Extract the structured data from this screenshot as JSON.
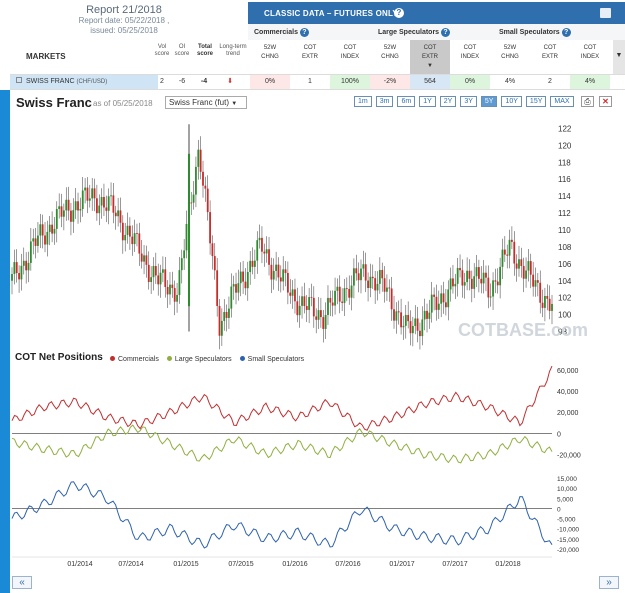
{
  "report": {
    "title": "Report 21/2018",
    "date_line": "Report date: 05/22/2018 ,",
    "issued_line": "issued: 05/25/2018"
  },
  "classic": {
    "label": "CLASSIC DATA – FUTURES ONLY",
    "help": "?",
    "groups": [
      "Commercials",
      "Large Speculators",
      "Small Speculators"
    ]
  },
  "markets_header": {
    "markets": "MARKETS",
    "vol_score": "Vol score",
    "oi_score": "OI score",
    "total_score": "Total score",
    "long_term_trend": "Long-term trend"
  },
  "columns": [
    {
      "l1": "52W",
      "l2": "CHNG"
    },
    {
      "l1": "COT",
      "l2": "EXTR"
    },
    {
      "l1": "COT",
      "l2": "INDEX"
    },
    {
      "l1": "52W",
      "l2": "CHNG"
    },
    {
      "l1": "COT",
      "l2": "EXTR"
    },
    {
      "l1": "COT",
      "l2": "INDEX"
    },
    {
      "l1": "52W",
      "l2": "CHNG"
    },
    {
      "l1": "COT",
      "l2": "EXTR"
    },
    {
      "l1": "COT",
      "l2": "INDEX"
    }
  ],
  "row": {
    "name": "SWISS FRANC",
    "currency": "(CHF/USD)",
    "vol": "2",
    "oi": "-6",
    "total": "-4",
    "cells": [
      "0%",
      "1",
      "100%",
      "-2%",
      "564",
      "0%",
      "4%",
      "2",
      "4%"
    ]
  },
  "chart": {
    "title": "Swiss Franc",
    "asof": "as of 05/25/2018",
    "select_value": "Swiss Franc (fut)",
    "ranges": [
      "1m",
      "3m",
      "6m",
      "1Y",
      "2Y",
      "3Y",
      "5Y",
      "10Y",
      "15Y",
      "MAX"
    ],
    "active_range": "5Y",
    "watermark": "COTBASE.com"
  },
  "cot": {
    "title": "COT Net Positions",
    "legend": [
      "Commercials",
      "Large Speculators",
      "Small Speculators"
    ]
  },
  "colors": {
    "commercials": "#c03030",
    "large": "#8fb040",
    "small": "#2f62ae",
    "accent": "#2f6fae"
  },
  "chart_data": [
    {
      "type": "candlestick",
      "title": "Swiss Franc",
      "ylim": [
        97,
        123
      ],
      "y_ticks": [
        98,
        100,
        102,
        104,
        106,
        108,
        110,
        112,
        114,
        116,
        118,
        120,
        122
      ],
      "approx_close_path": [
        {
          "x": "2013-06",
          "y": 104
        },
        {
          "x": "2013-09",
          "y": 108
        },
        {
          "x": "2013-12",
          "y": 111
        },
        {
          "x": "2014-03",
          "y": 113
        },
        {
          "x": "2014-05",
          "y": 114
        },
        {
          "x": "2014-07",
          "y": 112
        },
        {
          "x": "2014-09",
          "y": 108
        },
        {
          "x": "2014-11",
          "y": 104
        },
        {
          "x": "2015-01",
          "y": 103
        },
        {
          "x": "2015-01-15",
          "y": 120
        },
        {
          "x": "2015-02",
          "y": 99
        },
        {
          "x": "2015-04",
          "y": 104
        },
        {
          "x": "2015-06",
          "y": 108
        },
        {
          "x": "2015-08",
          "y": 104
        },
        {
          "x": "2015-10",
          "y": 101
        },
        {
          "x": "2015-12",
          "y": 100
        },
        {
          "x": "2016-03",
          "y": 103
        },
        {
          "x": "2016-06",
          "y": 105
        },
        {
          "x": "2016-09",
          "y": 103
        },
        {
          "x": "2016-12",
          "y": 98
        },
        {
          "x": "2017-03",
          "y": 100
        },
        {
          "x": "2017-06",
          "y": 103
        },
        {
          "x": "2017-09",
          "y": 105
        },
        {
          "x": "2017-12",
          "y": 103
        },
        {
          "x": "2018-02",
          "y": 108
        },
        {
          "x": "2018-04",
          "y": 104
        },
        {
          "x": "2018-05",
          "y": 101
        }
      ]
    },
    {
      "type": "line",
      "title": "COT Net Positions",
      "y_ticks": [
        -20000,
        0,
        20000,
        40000,
        60000
      ],
      "series": [
        {
          "name": "Commercials",
          "values": [
            12000,
            25000,
            30000,
            15000,
            8000,
            20000,
            35000,
            10000,
            25000,
            15000,
            30000,
            5000,
            15000,
            28000,
            35000,
            25000,
            10000,
            60000
          ]
        },
        {
          "name": "Large Speculators",
          "values": [
            -8000,
            -15000,
            -20000,
            0,
            5000,
            -10000,
            -25000,
            -5000,
            -20000,
            -10000,
            -20000,
            2000,
            -10000,
            -20000,
            -25000,
            -20000,
            -5000,
            -18000
          ]
        }
      ]
    },
    {
      "type": "line",
      "title": "",
      "y_ticks": [
        -20000,
        -15000,
        -10000,
        -5000,
        0,
        5000,
        10000,
        15000
      ],
      "series": [
        {
          "name": "Small Speculators",
          "values": [
            -5000,
            2000,
            12000,
            5000,
            -15000,
            -10000,
            -18000,
            -8000,
            -15000,
            -12000,
            -18000,
            0,
            -10000,
            -14000,
            -16000,
            -10000,
            5000,
            -20000
          ]
        }
      ]
    }
  ],
  "x_axis_labels": [
    "01/2014",
    "07/2014",
    "01/2015",
    "07/2015",
    "01/2016",
    "07/2016",
    "01/2017",
    "07/2017",
    "01/2018"
  ],
  "pager": {
    "prev": "«",
    "next": "»"
  }
}
